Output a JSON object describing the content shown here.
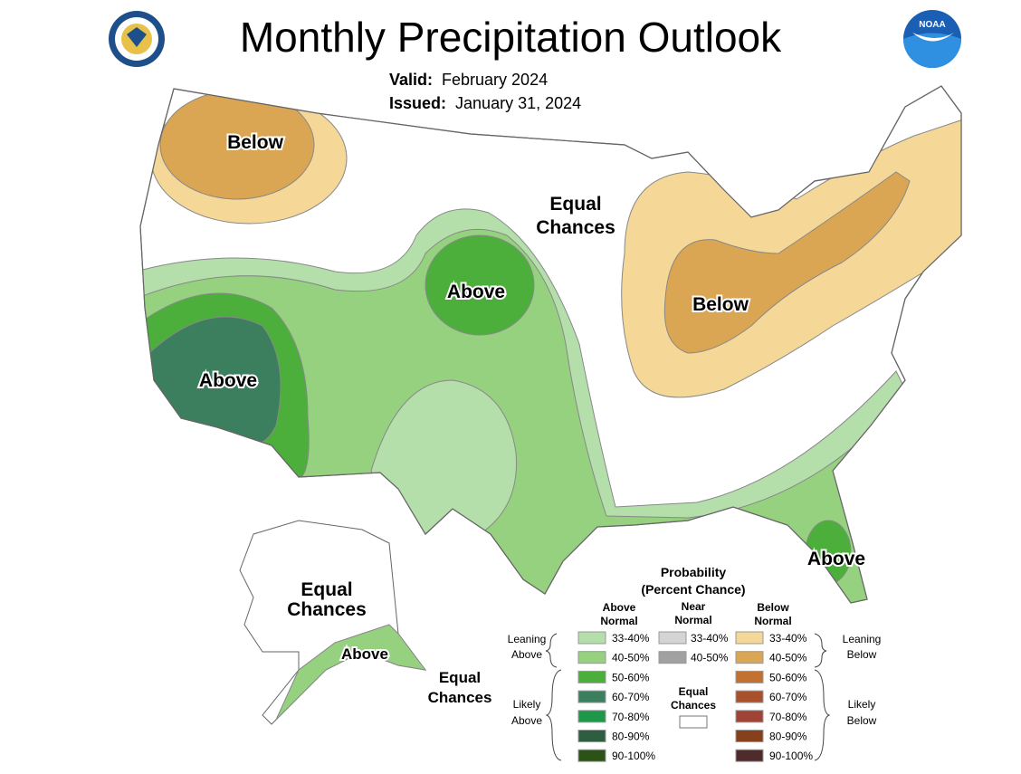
{
  "header": {
    "title": "Monthly Precipitation Outlook",
    "valid_label": "Valid:",
    "valid_value": "February 2024",
    "issued_label": "Issued:",
    "issued_value": "January 31, 2024",
    "logo_left": "Department of Commerce seal",
    "logo_right": "NOAA"
  },
  "map_labels": {
    "nw_below": "Below",
    "equal1": "Equal",
    "equal2": "Chances",
    "plains_above": "Above",
    "ne_below": "Below",
    "ca_above": "Above",
    "fl_above": "Above",
    "ak_equal1": "Equal",
    "ak_equal2": "Chances",
    "ak_above": "Above",
    "ak2_equal1": "Equal",
    "ak2_equal2": "Chances"
  },
  "legend": {
    "title1": "Probability",
    "title2": "(Percent Chance)",
    "col_above": [
      "Above",
      "Normal"
    ],
    "col_near": [
      "Near",
      "Normal"
    ],
    "col_below": [
      "Below",
      "Normal"
    ],
    "leaning_above": [
      "Leaning",
      "Above"
    ],
    "likely_above": [
      "Likely",
      "Above"
    ],
    "leaning_below": [
      "Leaning",
      "Below"
    ],
    "likely_below": [
      "Likely",
      "Below"
    ],
    "equal": [
      "Equal",
      "Chances"
    ],
    "above": [
      {
        "range": "33-40%",
        "color": "#b4dfaa"
      },
      {
        "range": "40-50%",
        "color": "#95d17f"
      },
      {
        "range": "50-60%",
        "color": "#4caf3b"
      },
      {
        "range": "60-70%",
        "color": "#3b7f5f"
      },
      {
        "range": "70-80%",
        "color": "#1e9848"
      },
      {
        "range": "80-90%",
        "color": "#2f5d40"
      },
      {
        "range": "90-100%",
        "color": "#2b5316"
      }
    ],
    "near": [
      {
        "range": "33-40%",
        "color": "#d4d4d4"
      },
      {
        "range": "40-50%",
        "color": "#a1a1a1"
      }
    ],
    "below": [
      {
        "range": "33-40%",
        "color": "#f5d797"
      },
      {
        "range": "40-50%",
        "color": "#dba654"
      },
      {
        "range": "50-60%",
        "color": "#c37130"
      },
      {
        "range": "60-70%",
        "color": "#a9512d"
      },
      {
        "range": "70-80%",
        "color": "#9f4336"
      },
      {
        "range": "80-90%",
        "color": "#86401b"
      },
      {
        "range": "90-100%",
        "color": "#502b2b"
      }
    ]
  }
}
